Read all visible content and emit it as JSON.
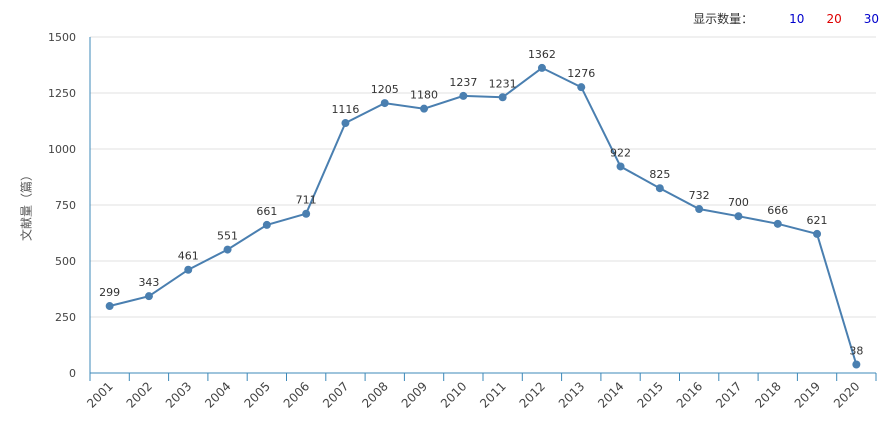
{
  "display_count": {
    "label": "显示数量：",
    "options": [
      {
        "label": "10",
        "color": "#0000cc"
      },
      {
        "label": "20",
        "color": "#dd0000"
      },
      {
        "label": "30",
        "color": "#0000cc"
      }
    ]
  },
  "chart_data": {
    "type": "line",
    "title": "",
    "xlabel": "",
    "ylabel": "文献量（篇）",
    "ylim": [
      0,
      1500
    ],
    "yticks": [
      0,
      250,
      500,
      750,
      1000,
      1250,
      1500
    ],
    "grid": true,
    "x": [
      "2001",
      "2002",
      "2003",
      "2004",
      "2005",
      "2006",
      "2007",
      "2008",
      "2009",
      "2010",
      "2011",
      "2012",
      "2013",
      "2014",
      "2015",
      "2016",
      "2017",
      "2018",
      "2019",
      "2020"
    ],
    "series": [
      {
        "values": [
          299,
          343,
          461,
          551,
          661,
          711,
          1116,
          1205,
          1180,
          1237,
          1231,
          1362,
          1276,
          922,
          825,
          732,
          700,
          666,
          621,
          38
        ],
        "color": "#4a7fb0"
      }
    ]
  }
}
